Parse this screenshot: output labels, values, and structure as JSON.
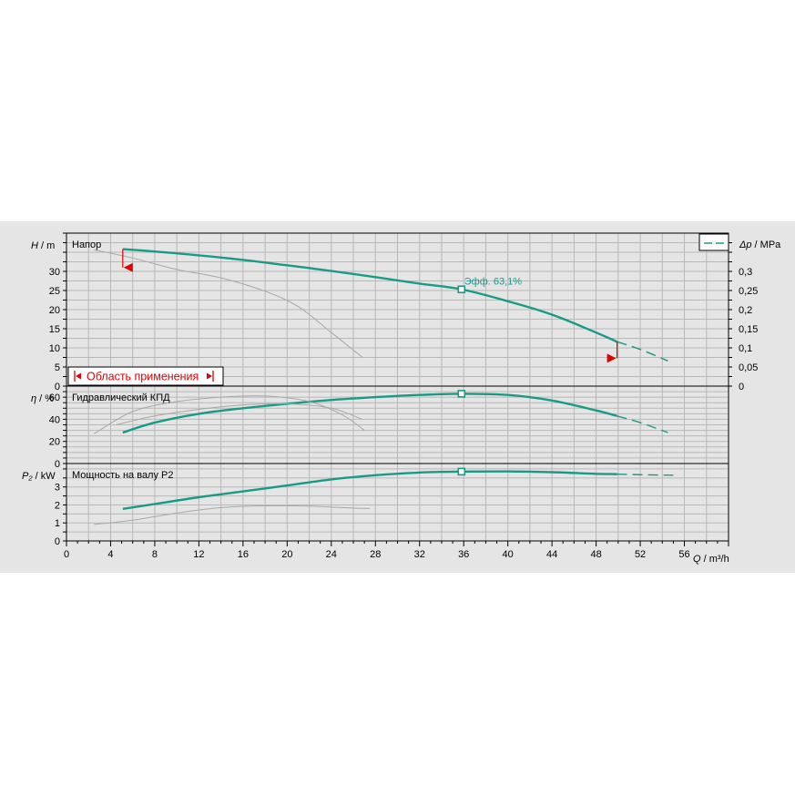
{
  "colors": {
    "pump_curve": "#1a9a86",
    "reference_curve": "#a8a8a8",
    "range_marker": "#e00000",
    "background": "#e5e5e5",
    "grid": "#b8b8b8"
  },
  "chart_data": [
    {
      "type": "line",
      "panel": "head",
      "title": "Напор",
      "ylabel_symbol": "H",
      "ylabel_unit": " / m",
      "y2label_symbol": "Δp",
      "y2label_unit": " / MPa",
      "xlim": [
        0,
        60
      ],
      "ylim": [
        0,
        40
      ],
      "y2lim": [
        0,
        0.4
      ],
      "yticks": [
        0,
        5,
        10,
        15,
        20,
        25,
        30
      ],
      "y2ticks": [
        "0",
        "0,05",
        "0,1",
        "0,15",
        "0,2",
        "0,25",
        "0,3"
      ],
      "y2tick_values": [
        0,
        0.05,
        0.1,
        0.15,
        0.2,
        0.25,
        0.3
      ],
      "duty_point": {
        "x": 35.8,
        "y": 25.3,
        "label": "Эфф.  63,1%"
      },
      "application_range_label": "Область применения",
      "range_left": {
        "x": 5.1,
        "y_top": 35.8,
        "y_bottom": 31.0
      },
      "range_right": {
        "x": 49.9,
        "y_top": 11.6,
        "y_bottom": 7.3
      },
      "series": [
        {
          "role": "main",
          "x": [
            5.1,
            8,
            12,
            16,
            20,
            24,
            28,
            32,
            35.8,
            40,
            44,
            48,
            49.9
          ],
          "y": [
            35.8,
            35.2,
            34.2,
            33.0,
            31.6,
            30.1,
            28.5,
            26.8,
            25.3,
            22.2,
            18.7,
            14.0,
            11.6
          ]
        },
        {
          "role": "dashed",
          "x": [
            49.9,
            52,
            54.5
          ],
          "y": [
            11.6,
            9.6,
            6.6
          ]
        },
        {
          "role": "reference",
          "x": [
            2.5,
            6,
            10,
            14,
            18,
            21,
            24,
            26.8
          ],
          "y": [
            35.6,
            33.5,
            30.5,
            28.3,
            24.8,
            20.8,
            14.0,
            7.6
          ]
        }
      ]
    },
    {
      "type": "line",
      "panel": "efficiency",
      "title": "Гидравлический КПД",
      "ylabel_symbol": "η",
      "ylabel_unit": " / %",
      "xlim": [
        0,
        60
      ],
      "ylim": [
        0,
        70
      ],
      "yticks": [
        0,
        20,
        40,
        60
      ],
      "duty_point": {
        "x": 35.8,
        "y": 63.1
      },
      "series": [
        {
          "role": "main",
          "x": [
            5.1,
            8,
            12,
            16,
            20,
            24,
            28,
            32,
            35.8,
            40,
            44,
            48,
            49.9
          ],
          "y": [
            28,
            37,
            45,
            50,
            54,
            57.5,
            60,
            62,
            63.1,
            62,
            57,
            48,
            43
          ]
        },
        {
          "role": "dashed",
          "x": [
            49.9,
            52,
            54.5
          ],
          "y": [
            43,
            37,
            28
          ]
        },
        {
          "role": "reference",
          "x": [
            2.5,
            6,
            10,
            14,
            18,
            22,
            25,
            27
          ],
          "y": [
            27,
            47,
            56,
            60,
            61,
            56,
            44,
            30
          ]
        },
        {
          "role": "reference",
          "x": [
            4.5,
            8,
            12,
            16,
            20,
            24,
            26.8
          ],
          "y": [
            35,
            43,
            49,
            53,
            54,
            50,
            40
          ]
        }
      ]
    },
    {
      "type": "line",
      "panel": "power",
      "title": "Мощность на валу P2",
      "ylabel_symbol": "P₂",
      "ylabel_unit": " / kW",
      "xlim": [
        0,
        60
      ],
      "ylim": [
        0,
        4.3
      ],
      "yticks": [
        0,
        1,
        2,
        3
      ],
      "xticks": [
        0,
        4,
        8,
        12,
        16,
        20,
        24,
        28,
        32,
        36,
        40,
        44,
        48,
        52,
        56
      ],
      "xlabel_symbol": "Q",
      "xlabel_unit": " / m³/h",
      "duty_point": {
        "x": 35.8,
        "y": 3.85
      },
      "series": [
        {
          "role": "main",
          "x": [
            5.1,
            8,
            12,
            16,
            20,
            24,
            28,
            32,
            35.8,
            40,
            44,
            48,
            49.9
          ],
          "y": [
            1.78,
            2.05,
            2.43,
            2.75,
            3.08,
            3.42,
            3.65,
            3.8,
            3.85,
            3.86,
            3.82,
            3.73,
            3.71
          ]
        },
        {
          "role": "dashed",
          "x": [
            49.9,
            52,
            55
          ],
          "y": [
            3.71,
            3.68,
            3.65
          ]
        },
        {
          "role": "reference",
          "x": [
            2.5,
            6,
            10,
            14,
            18,
            22,
            25,
            27.5
          ],
          "y": [
            0.92,
            1.15,
            1.55,
            1.85,
            1.95,
            1.93,
            1.85,
            1.8
          ]
        }
      ]
    }
  ],
  "legend": {
    "placement": "top-right"
  }
}
